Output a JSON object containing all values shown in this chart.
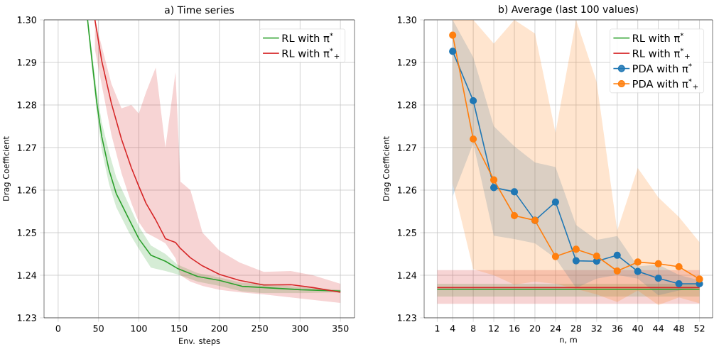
{
  "chart_data": [
    {
      "type": "line",
      "title": "a) Time series",
      "xlabel": "Env. steps",
      "ylabel": "Drag Coefficient",
      "xlim": [
        -17.5,
        367.5
      ],
      "ylim": [
        1.23,
        1.3
      ],
      "xticks": [
        0,
        50,
        100,
        150,
        200,
        250,
        300,
        350
      ],
      "yticks": [
        {
          "value": 1.23,
          "label": "1.23"
        },
        {
          "value": 1.24,
          "label": "1.24"
        },
        {
          "value": 1.25,
          "label": "1.25"
        },
        {
          "value": 1.26,
          "label": "1.26"
        },
        {
          "value": 1.27,
          "label": "1.27"
        },
        {
          "value": 1.28,
          "label": "1.28"
        },
        {
          "value": 1.29,
          "label": "1.29"
        },
        {
          "value": 1.3,
          "label": "1.30"
        }
      ],
      "grid": true,
      "legend": "top right",
      "series": [
        {
          "name": "RL with π$^{*}$",
          "color": "#2ca02c",
          "x": [
            36.5,
            42,
            48,
            54,
            63,
            72,
            88,
            100,
            115,
            133,
            148,
            173,
            200,
            228,
            255,
            301,
            350
          ],
          "values": [
            1.3,
            1.2904,
            1.2804,
            1.2726,
            1.2648,
            1.2592,
            1.2531,
            1.2486,
            1.2447,
            1.2433,
            1.2416,
            1.2397,
            1.2388,
            1.2374,
            1.2371,
            1.2366,
            1.2363
          ],
          "lower": [
            1.2985,
            1.2885,
            1.278,
            1.2695,
            1.2615,
            1.256,
            1.25,
            1.2462,
            1.2418,
            1.241,
            1.2402,
            1.2385,
            1.2375,
            1.2362,
            1.2358,
            1.2358,
            1.236
          ],
          "upper": [
            1.3,
            1.2925,
            1.283,
            1.276,
            1.269,
            1.263,
            1.2565,
            1.2515,
            1.247,
            1.245,
            1.2425,
            1.2405,
            1.2395,
            1.2382,
            1.238,
            1.2372,
            1.2366
          ]
        },
        {
          "name": "RL with π$^{*}$$_{+}$",
          "color": "#d62728",
          "x": [
            45.6,
            54,
            66,
            78.5,
            90.7,
            100,
            109,
            121,
            133,
            145.5,
            151.6,
            164,
            179,
            200,
            225,
            255,
            288.5,
            316,
            350
          ],
          "values": [
            1.3,
            1.2904,
            1.2804,
            1.272,
            1.2653,
            1.2609,
            1.2569,
            1.253,
            1.2486,
            1.2477,
            1.2463,
            1.2441,
            1.2422,
            1.2402,
            1.2388,
            1.2377,
            1.2378,
            1.2371,
            1.236
          ],
          "lower": [
            1.293,
            null,
            1.273,
            1.264,
            1.257,
            1.2525,
            1.25,
            1.2488,
            1.2475,
            1.244,
            1.24,
            1.2385,
            1.2375,
            1.2366,
            1.236,
            1.2355,
            1.2348,
            1.2342,
            1.2335
          ],
          "upper": [
            1.3,
            null,
            1.285,
            1.2792,
            1.28,
            1.278,
            1.283,
            1.2888,
            1.27,
            1.2877,
            1.262,
            1.26,
            1.25,
            1.2458,
            1.243,
            1.2408,
            1.241,
            1.24,
            1.238
          ]
        }
      ]
    },
    {
      "type": "line",
      "title": "b) Average (last 100 values)",
      "xlabel": "n, m",
      "ylabel": "Drag Coefficient",
      "xlim": [
        -1.55,
        54.55
      ],
      "ylim": [
        1.23,
        1.3
      ],
      "xticks": [
        1,
        4,
        8,
        12,
        16,
        20,
        24,
        28,
        32,
        36,
        40,
        44,
        48,
        52
      ],
      "yticks": [
        {
          "value": 1.23,
          "label": "1.23"
        },
        {
          "value": 1.24,
          "label": "1.24"
        },
        {
          "value": 1.25,
          "label": "1.25"
        },
        {
          "value": 1.26,
          "label": "1.26"
        },
        {
          "value": 1.27,
          "label": "1.27"
        },
        {
          "value": 1.28,
          "label": "1.28"
        },
        {
          "value": 1.29,
          "label": "1.29"
        },
        {
          "value": 1.3,
          "label": "1.30"
        }
      ],
      "grid": true,
      "legend": "top right",
      "series": [
        {
          "name": "RL with π$^{*}$",
          "color": "#2ca02c",
          "marker": "none",
          "x": [
            1,
            52
          ],
          "values": [
            1.2367,
            1.2367
          ],
          "lower": [
            1.235,
            1.235
          ],
          "upper": [
            1.238,
            1.238
          ]
        },
        {
          "name": "RL with π$^{*}$$_{+}$",
          "color": "#d62728",
          "marker": "none",
          "x": [
            1,
            52
          ],
          "values": [
            1.2371,
            1.2371
          ],
          "lower": [
            1.2333,
            1.2333
          ],
          "upper": [
            1.2412,
            1.2412
          ]
        },
        {
          "name": "PDA with π$^{*}$",
          "color": "#1f77b4",
          "marker": "circle",
          "x": [
            4,
            8,
            12,
            16,
            20,
            24,
            28,
            32,
            36,
            40,
            44,
            48,
            52
          ],
          "values": [
            1.2926,
            1.281,
            1.2606,
            1.2596,
            1.2529,
            1.2572,
            1.2434,
            1.2433,
            1.2447,
            1.2409,
            1.2393,
            1.238,
            1.238
          ],
          "lower": [
            1.2585,
            1.271,
            1.2493,
            1.2485,
            1.2475,
            1.244,
            1.237,
            1.2392,
            1.2401,
            1.2392,
            1.2353,
            1.2364,
            1.2371
          ],
          "upper": [
            1.3,
            1.2912,
            1.275,
            1.2703,
            1.2665,
            1.2654,
            1.2518,
            1.2483,
            1.2492,
            1.2421,
            1.2425,
            1.2401,
            1.2388
          ]
        },
        {
          "name": "PDA with π$^{*}$$_{+}$",
          "color": "#ff7f0e",
          "marker": "circle",
          "x": [
            4,
            8,
            12,
            16,
            20,
            24,
            28,
            32,
            36,
            40,
            44,
            48,
            52
          ],
          "values": [
            1.2964,
            1.272,
            1.2624,
            1.254,
            1.2529,
            1.2444,
            1.2461,
            1.2445,
            1.241,
            1.2431,
            1.2427,
            1.242,
            1.2391
          ],
          "lower": [
            1.2615,
            1.2414,
            1.24,
            1.2378,
            1.2385,
            1.238,
            1.2368,
            1.2355,
            1.2337,
            1.2364,
            1.233,
            1.2348,
            1.2334
          ],
          "upper": [
            1.3,
            1.3,
            1.2944,
            1.3,
            1.2968,
            1.2735,
            1.3,
            1.2854,
            1.2505,
            1.2652,
            1.2583,
            1.2537,
            1.2478
          ]
        }
      ]
    }
  ]
}
